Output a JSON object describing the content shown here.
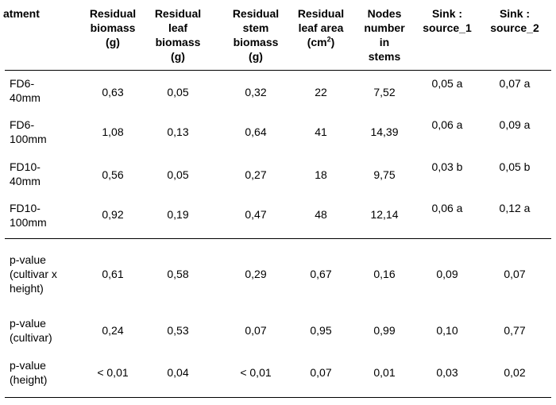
{
  "header": {
    "treatment": "atment",
    "residual_biomass": "Residual\nbiomass\n(g)",
    "residual_leaf_biomass": "Residual\nleaf\nbiomass\n(g)",
    "residual_stem_biomass": "Residual\nstem\nbiomass\n(g)",
    "residual_leaf_area_main": "Residual\nleaf area\n(cm",
    "residual_leaf_area_sup": "2",
    "residual_leaf_area_end": ")",
    "nodes": "Nodes\nnumber\nin\nstems",
    "sink1": "Sink :\nsource_1",
    "sink2": "Sink :\nsource_2"
  },
  "rows": [
    {
      "label": "FD6-\n40mm",
      "v1": "0,63",
      "v2": "0,05",
      "v3": "0,32",
      "v4": "22",
      "v5": "7,52",
      "v6": "0,05 a",
      "v7": "0,07 a"
    },
    {
      "label": "FD6-\n100mm",
      "v1": "1,08",
      "v2": "0,13",
      "v3": "0,64",
      "v4": "41",
      "v5": "14,39",
      "v6": "0,06 a",
      "v7": "0,09 a"
    },
    {
      "label": "FD10-\n40mm",
      "v1": "0,56",
      "v2": "0,05",
      "v3": "0,27",
      "v4": "18",
      "v5": "9,75",
      "v6": "0,03 b",
      "v7": "0,05 b"
    },
    {
      "label": "FD10-\n100mm",
      "v1": "0,92",
      "v2": "0,19",
      "v3": "0,47",
      "v4": "48",
      "v5": "12,14",
      "v6": "0,06 a",
      "v7": "0,12 a"
    }
  ],
  "pvalues": [
    {
      "label": "p-value\n(cultivar x\nheight)",
      "v1": "0,61",
      "v2": "0,58",
      "v3": "0,29",
      "v4": "0,67",
      "v5": "0,16",
      "v6": "0,09",
      "v7": "0,07"
    },
    {
      "label": "p-value\n(cultivar)",
      "v1": "0,24",
      "v2": "0,53",
      "v3": "0,07",
      "v4": "0,95",
      "v5": "0,99",
      "v6": "0,10",
      "v7": "0,77"
    },
    {
      "label": "p-value\n(height)",
      "v1": "< 0,01",
      "v2": "0,04",
      "v3": "< 0,01",
      "v4": "0,07",
      "v5": "0,01",
      "v6": "0,03",
      "v7": "0,02"
    }
  ]
}
